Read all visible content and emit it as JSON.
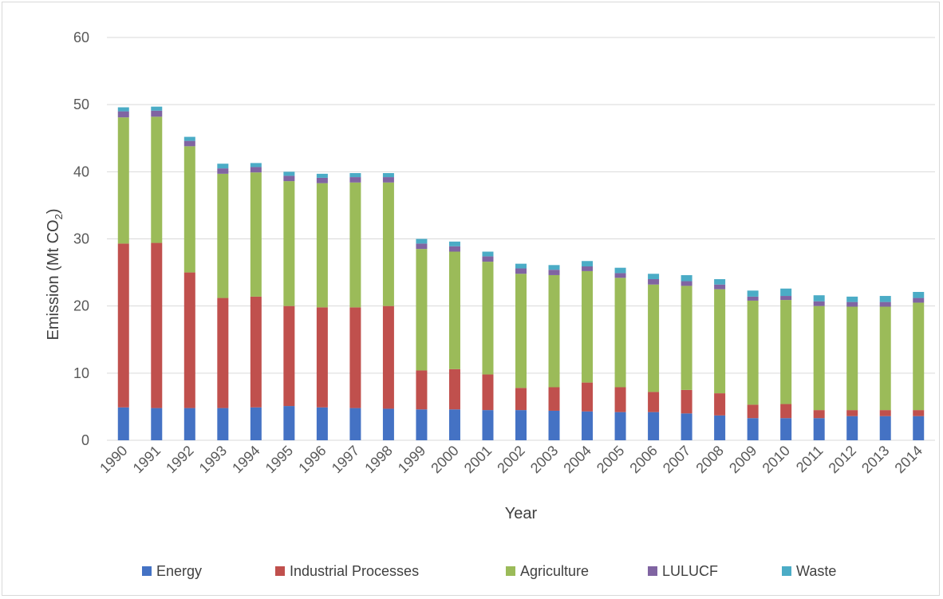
{
  "chart_data": {
    "type": "bar",
    "stacked": true,
    "title": "",
    "xlabel": "Year",
    "ylabel_main": "Emission (Mt CO",
    "ylabel_sub": "2",
    "ylabel_end": ")",
    "ylim": [
      0,
      60
    ],
    "yticks": [
      0,
      10,
      20,
      30,
      40,
      50,
      60
    ],
    "grid": true,
    "legend_position": "bottom",
    "categories": [
      "1990",
      "1991",
      "1992",
      "1993",
      "1994",
      "1995",
      "1996",
      "1997",
      "1998",
      "1999",
      "2000",
      "2001",
      "2002",
      "2003",
      "2004",
      "2005",
      "2006",
      "2007",
      "2008",
      "2009",
      "2010",
      "2011",
      "2012",
      "2013",
      "2014"
    ],
    "series": [
      {
        "name": "Energy",
        "color": "#4472c4",
        "values": [
          4.9,
          4.8,
          4.8,
          4.8,
          4.9,
          5.1,
          4.9,
          4.8,
          4.7,
          4.6,
          4.6,
          4.5,
          4.5,
          4.4,
          4.3,
          4.2,
          4.2,
          4.0,
          3.7,
          3.3,
          3.3,
          3.3,
          3.6,
          3.6,
          3.6
        ]
      },
      {
        "name": "Industrial Processes",
        "color": "#c0504d",
        "values": [
          24.4,
          24.6,
          20.2,
          16.4,
          16.5,
          14.9,
          14.9,
          15.0,
          15.3,
          5.8,
          6.0,
          5.3,
          3.3,
          3.5,
          4.3,
          3.7,
          3.0,
          3.5,
          3.3,
          2.0,
          2.1,
          1.2,
          0.9,
          0.9,
          0.9
        ]
      },
      {
        "name": "Agriculture",
        "color": "#9bbb59",
        "values": [
          18.8,
          18.8,
          18.8,
          18.5,
          18.5,
          18.6,
          18.5,
          18.6,
          18.4,
          18.1,
          17.5,
          16.8,
          17.0,
          16.7,
          16.6,
          16.3,
          16.0,
          15.5,
          15.5,
          15.5,
          15.5,
          15.5,
          15.4,
          15.4,
          16.0
        ]
      },
      {
        "name": "LULUCF",
        "color": "#8064a2",
        "values": [
          0.9,
          0.9,
          0.8,
          0.8,
          0.8,
          0.8,
          0.8,
          0.8,
          0.8,
          0.8,
          0.8,
          0.8,
          0.8,
          0.8,
          0.7,
          0.7,
          0.8,
          0.7,
          0.7,
          0.6,
          0.6,
          0.7,
          0.7,
          0.7,
          0.7
        ]
      },
      {
        "name": "Waste",
        "color": "#4bacc6",
        "values": [
          0.6,
          0.6,
          0.6,
          0.7,
          0.6,
          0.6,
          0.6,
          0.6,
          0.6,
          0.7,
          0.7,
          0.7,
          0.7,
          0.7,
          0.8,
          0.8,
          0.8,
          0.9,
          0.8,
          0.9,
          1.1,
          0.9,
          0.8,
          0.9,
          0.9
        ]
      }
    ]
  }
}
